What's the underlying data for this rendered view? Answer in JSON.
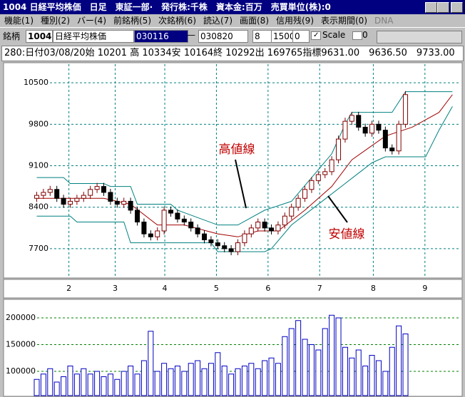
{
  "window": {
    "title": "1004 日経平均株価　日足　東証一部·　発行株:千株　資本金:百万　売買単位(株):0"
  },
  "menu": [
    "機能(1)",
    "種別(2)",
    "バー(4)",
    "前銘柄(5)",
    "次銘柄(6)",
    "読込(7)",
    "画面(8)",
    "信用残(9)",
    "表示期間(0)",
    "DNA"
  ],
  "toolbar": {
    "label": "銘柄",
    "code": "1004",
    "name": "日経平均株価",
    "from": "030116",
    "dash": "—",
    "to": "030820",
    "span": "8",
    "count": "1500",
    "offset": "0",
    "scale": "Scale",
    "scale_value": "0"
  },
  "info": "280:日付03/08/20始 10201 高 10334安 10164終 10292出 169765指標9631.00　9636.50　9733.00",
  "chart_data": [
    {
      "type": "candlestick",
      "open": [
        8550,
        8600,
        8650,
        8700,
        8550,
        8450,
        8500,
        8550,
        8600,
        8700,
        8750,
        8650,
        8500,
        8450,
        8500,
        8350,
        8150,
        7950,
        7900,
        8000,
        8350,
        8300,
        8200,
        8150,
        8050,
        7950,
        7850,
        7800,
        7750,
        7700,
        7650,
        7800,
        7950,
        8050,
        8150,
        8050,
        8000,
        8100,
        8250,
        8400,
        8550,
        8700,
        8850,
        8950,
        9000,
        9200,
        9550,
        9850,
        9950,
        9750,
        9650,
        9800,
        9700,
        9400,
        9350,
        9800
      ],
      "high": [
        8660,
        8710,
        8760,
        8760,
        8610,
        8560,
        8610,
        8660,
        8760,
        8810,
        8810,
        8710,
        8560,
        8560,
        8560,
        8410,
        8210,
        8010,
        8060,
        8410,
        8410,
        8360,
        8260,
        8210,
        8110,
        8010,
        7910,
        7860,
        7810,
        7760,
        7860,
        8010,
        8110,
        8210,
        8210,
        8110,
        8160,
        8310,
        8460,
        8610,
        8760,
        8910,
        9010,
        9060,
        9260,
        9610,
        9910,
        10010,
        10010,
        9810,
        9860,
        9860,
        9760,
        9460,
        9860,
        10360
      ],
      "low": [
        8490,
        8540,
        8590,
        8490,
        8390,
        8390,
        8440,
        8490,
        8540,
        8640,
        8590,
        8440,
        8390,
        8390,
        8290,
        8090,
        7890,
        7840,
        7840,
        7940,
        8240,
        8140,
        8090,
        7990,
        7890,
        7790,
        7740,
        7690,
        7640,
        7590,
        7590,
        7740,
        7890,
        7990,
        7990,
        7940,
        7940,
        8040,
        8190,
        8340,
        8490,
        8640,
        8790,
        8890,
        8940,
        9140,
        9490,
        9790,
        9690,
        9590,
        9590,
        9640,
        9340,
        9290,
        9290,
        9740
      ],
      "close": [
        8600,
        8650,
        8700,
        8550,
        8450,
        8500,
        8550,
        8600,
        8700,
        8750,
        8650,
        8500,
        8450,
        8500,
        8350,
        8150,
        7950,
        7900,
        8000,
        8350,
        8300,
        8200,
        8150,
        8050,
        7950,
        7850,
        7800,
        7750,
        7700,
        7650,
        7800,
        7950,
        8050,
        8150,
        8050,
        8000,
        8100,
        8250,
        8400,
        8550,
        8700,
        8850,
        8950,
        9000,
        9200,
        9550,
        9850,
        9950,
        9750,
        9650,
        9800,
        9700,
        9400,
        9350,
        9800,
        10300
      ],
      "up_color": "#ffffff",
      "down_color": "#000000",
      "edge_color": "#800000",
      "series": [
        {
          "color": "#008080",
          "x": [
            0,
            4,
            5,
            10,
            11,
            14,
            15,
            20,
            21,
            27,
            30,
            34,
            38,
            41,
            44,
            46,
            47,
            53,
            55,
            62
          ],
          "values": [
            8900,
            8900,
            8800,
            8800,
            8750,
            8750,
            8450,
            8450,
            8350,
            8100,
            8100,
            8350,
            8500,
            8900,
            9300,
            9800,
            10000,
            10000,
            10350,
            10350
          ]
        },
        {
          "color": "#a00000",
          "x": [
            0,
            5,
            10,
            14,
            18,
            22,
            27,
            30,
            33,
            36,
            40,
            44,
            47,
            52,
            56,
            60,
            62
          ],
          "values": [
            8550,
            8550,
            8550,
            8450,
            8100,
            8100,
            7950,
            7900,
            8000,
            8000,
            8350,
            8750,
            9200,
            9600,
            9750,
            10000,
            10300
          ]
        },
        {
          "color": "#008080",
          "x": [
            0,
            5,
            6,
            13,
            14,
            26,
            27,
            34,
            35,
            38,
            42,
            46,
            50,
            52,
            58,
            60,
            62
          ],
          "values": [
            8250,
            8250,
            8150,
            8150,
            7800,
            7800,
            7650,
            7650,
            7700,
            8100,
            8450,
            8800,
            9150,
            9250,
            9250,
            9700,
            10100
          ]
        }
      ],
      "annotations": [
        "高値線",
        "安値線"
      ],
      "xlim": [
        -4.2,
        62.6
      ],
      "ylim": [
        7230,
        10790
      ],
      "yticks": [
        7700,
        8400,
        9100,
        9800,
        10500
      ],
      "xticks": [
        {
          "value": 4.8,
          "label": "2"
        },
        {
          "value": 11.7,
          "label": "3"
        },
        {
          "value": 19.1,
          "label": "4"
        },
        {
          "value": 26.8,
          "label": "5"
        },
        {
          "value": 34.5,
          "label": "6"
        },
        {
          "value": 42.2,
          "label": "7"
        },
        {
          "value": 50.2,
          "label": "8"
        },
        {
          "value": 57.9,
          "label": "9"
        }
      ],
      "grid": true,
      "grid_color": "#008080"
    },
    {
      "type": "bar",
      "color": "#0000c0",
      "values": [
        85000,
        95000,
        105000,
        80000,
        90000,
        110000,
        95000,
        105000,
        95000,
        100000,
        90000,
        95000,
        85000,
        100000,
        110000,
        95000,
        120000,
        175000,
        100000,
        115000,
        105000,
        110000,
        100000,
        115000,
        120000,
        105000,
        115000,
        135000,
        110000,
        95000,
        105000,
        110000,
        115000,
        105000,
        120000,
        125000,
        115000,
        165000,
        180000,
        195000,
        160000,
        150000,
        140000,
        180000,
        205000,
        200000,
        145000,
        125000,
        140000,
        110000,
        130000,
        120000,
        100000,
        145000,
        185000,
        170000
      ],
      "xlim": [
        -4.2,
        62.6
      ],
      "ylim": [
        54700,
        228000
      ],
      "yticks": [
        100000,
        150000,
        200000
      ],
      "grid": true,
      "grid_color": "#008000"
    }
  ]
}
